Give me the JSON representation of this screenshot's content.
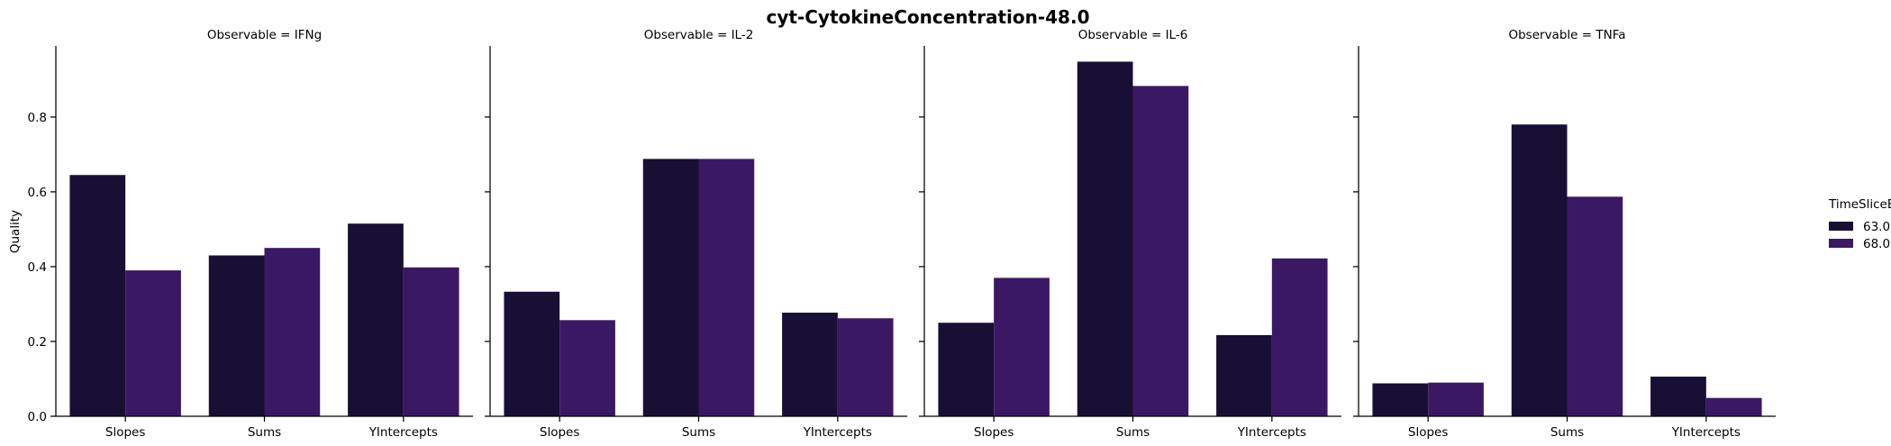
{
  "chart_data": {
    "type": "bar",
    "title": "cyt-CytokineConcentration-48.0",
    "ylabel": "Quality",
    "xlabel": "",
    "ylim": [
      0,
      0.99
    ],
    "yticks": [
      0.0,
      0.2,
      0.4,
      0.6,
      0.8
    ],
    "ytick_labels": [
      "0.0",
      "0.2",
      "0.4",
      "0.6",
      "0.8"
    ],
    "categories": [
      "Slopes",
      "Sums",
      "YIntercepts"
    ],
    "legend": {
      "title": "TimeSliceEnd",
      "placement": "right",
      "entries": [
        "63.0",
        "68.0"
      ]
    },
    "colors": [
      "#180f34",
      "#3b1864"
    ],
    "facets": [
      {
        "title": "Observable = IFNg",
        "series": [
          {
            "name": "63.0",
            "values": [
              0.645,
              0.43,
              0.515
            ]
          },
          {
            "name": "68.0",
            "values": [
              0.39,
              0.45,
              0.398
            ]
          }
        ]
      },
      {
        "title": "Observable = IL-2",
        "series": [
          {
            "name": "63.0",
            "values": [
              0.333,
              0.688,
              0.277
            ]
          },
          {
            "name": "68.0",
            "values": [
              0.257,
              0.688,
              0.262
            ]
          }
        ]
      },
      {
        "title": "Observable = IL-6",
        "series": [
          {
            "name": "63.0",
            "values": [
              0.25,
              0.948,
              0.217
            ]
          },
          {
            "name": "68.0",
            "values": [
              0.37,
              0.883,
              0.422
            ]
          }
        ]
      },
      {
        "title": "Observable = TNFa",
        "series": [
          {
            "name": "63.0",
            "values": [
              0.088,
              0.78,
              0.106
            ]
          },
          {
            "name": "68.0",
            "values": [
              0.09,
              0.587,
              0.049
            ]
          }
        ]
      }
    ]
  }
}
